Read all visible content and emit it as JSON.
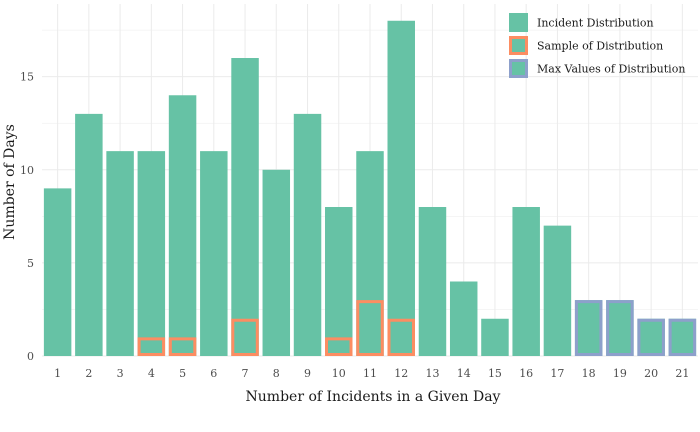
{
  "chart_data": {
    "type": "bar",
    "xlabel": "Number of Incidents in a Given Day",
    "ylabel": "Number of Days",
    "ylim": [
      0,
      18.9
    ],
    "yticks": [
      0,
      5,
      10,
      15
    ],
    "grid": true,
    "legend_position": "top-right",
    "categories": [
      "1",
      "2",
      "3",
      "4",
      "5",
      "6",
      "7",
      "8",
      "9",
      "10",
      "11",
      "12",
      "13",
      "14",
      "15",
      "16",
      "17",
      "18",
      "19",
      "20",
      "21"
    ],
    "series": [
      {
        "name": "Incident Distribution",
        "style": "filled",
        "values": [
          9,
          13,
          11,
          11,
          14,
          11,
          16,
          10,
          13,
          8,
          11,
          18,
          8,
          4,
          2,
          8,
          7,
          3,
          3,
          2,
          2
        ]
      },
      {
        "name": "Sample of Distribution",
        "style": "outline",
        "values": [
          null,
          null,
          null,
          1,
          1,
          null,
          2,
          null,
          null,
          1,
          3,
          2,
          null,
          null,
          null,
          null,
          null,
          null,
          null,
          null,
          null
        ]
      },
      {
        "name": "Max Values of Distribution",
        "style": "outline",
        "values": [
          null,
          null,
          null,
          null,
          null,
          null,
          null,
          null,
          null,
          null,
          null,
          null,
          null,
          null,
          null,
          null,
          null,
          3,
          3,
          2,
          2
        ]
      }
    ]
  },
  "colors": {
    "fill": "#66c2a5",
    "sample_outline": "#fc8d62",
    "max_outline": "#8da0cb",
    "grid": "#ebebeb"
  }
}
